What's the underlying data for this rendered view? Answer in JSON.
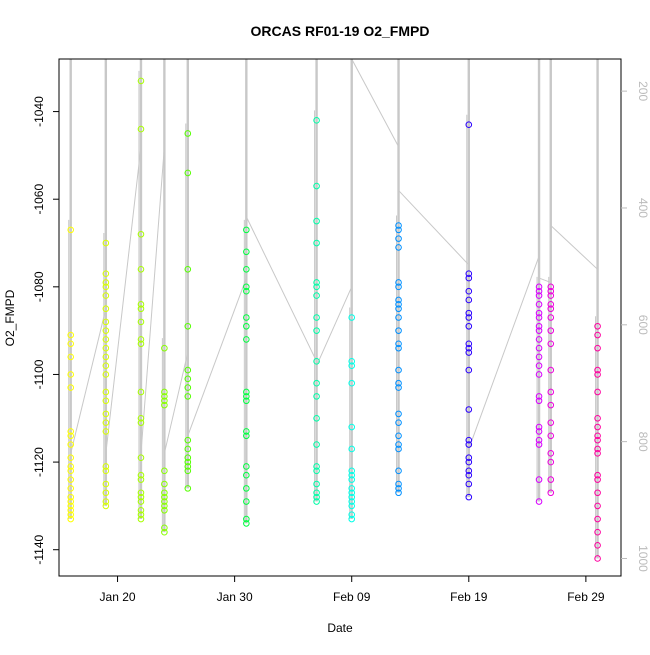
{
  "chart_data": {
    "type": "scatter",
    "title": "ORCAS RF01-19 O2_FMPD",
    "xlabel": "Date",
    "ylabel": "O2_FMPD",
    "x_axis": {
      "type": "date",
      "min": "2016-01-15",
      "max": "2016-03-03",
      "ticks": [
        {
          "value": "2016-01-20",
          "label": "Jan 20"
        },
        {
          "value": "2016-01-30",
          "label": "Jan 30"
        },
        {
          "value": "2016-02-09",
          "label": "Feb 09"
        },
        {
          "value": "2016-02-19",
          "label": "Feb 19"
        },
        {
          "value": "2016-02-29",
          "label": "Feb 29"
        }
      ]
    },
    "y_axis": {
      "min": -1146,
      "max": -1028,
      "ticks": [
        -1140,
        -1120,
        -1100,
        -1080,
        -1060,
        -1040
      ]
    },
    "y2_axis": {
      "color": "#bbbbbb",
      "min": 1030,
      "max": 145,
      "ticks": [
        200,
        400,
        600,
        800,
        1000
      ]
    },
    "grid": false,
    "legend": "none",
    "line_color": "#c8c8c8",
    "flights": [
      {
        "date": "2016-01-16",
        "color": "#ffff00",
        "values": [
          -1067,
          -1091,
          -1093,
          -1096,
          -1100,
          -1103,
          -1113,
          -1114,
          -1116,
          -1119,
          -1121,
          -1122,
          -1124,
          -1126,
          -1128,
          -1129,
          -1130,
          -1131,
          -1132,
          -1133
        ]
      },
      {
        "date": "2016-01-19",
        "color": "#d8ff00",
        "values": [
          -1070,
          -1077,
          -1079,
          -1080,
          -1082,
          -1085,
          -1088,
          -1090,
          -1092,
          -1094,
          -1096,
          -1098,
          -1100,
          -1104,
          -1106,
          -1109,
          -1111,
          -1113,
          -1121,
          -1122,
          -1125,
          -1127,
          -1129,
          -1130
        ]
      },
      {
        "date": "2016-01-22",
        "color": "#a8ff00",
        "values": [
          -1033,
          -1044,
          -1068,
          -1076,
          -1084,
          -1085,
          -1088,
          -1092,
          -1093,
          -1104,
          -1110,
          -1111,
          -1119,
          -1123,
          -1124,
          -1127,
          -1128,
          -1129,
          -1131,
          -1132,
          -1133
        ]
      },
      {
        "date": "2016-01-24",
        "color": "#88ff00",
        "values": [
          -1094,
          -1104,
          -1105,
          -1106,
          -1107,
          -1122,
          -1125,
          -1127,
          -1128,
          -1129,
          -1130,
          -1131,
          -1135,
          -1136
        ]
      },
      {
        "date": "2016-01-26",
        "color": "#55ff00",
        "values": [
          -1045,
          -1054,
          -1076,
          -1089,
          -1099,
          -1101,
          -1103,
          -1105,
          -1115,
          -1117,
          -1119,
          -1120,
          -1121,
          -1122,
          -1126
        ]
      },
      {
        "date": "2016-01-31",
        "color": "#00ff40",
        "values": [
          -1067,
          -1072,
          -1076,
          -1080,
          -1081,
          -1087,
          -1089,
          -1092,
          -1104,
          -1105,
          -1106,
          -1113,
          -1114,
          -1121,
          -1123,
          -1126,
          -1129,
          -1133,
          -1134
        ]
      },
      {
        "date": "2016-02-06",
        "color": "#00ffa8",
        "values": [
          -1042,
          -1057,
          -1065,
          -1070,
          -1079,
          -1080,
          -1082,
          -1087,
          -1090,
          -1097,
          -1102,
          -1105,
          -1110,
          -1116,
          -1121,
          -1122,
          -1125,
          -1127,
          -1128,
          -1129
        ]
      },
      {
        "date": "2016-02-09",
        "color": "#00ffe8",
        "values": [
          -1087,
          -1097,
          -1098,
          -1102,
          -1112,
          -1117,
          -1122,
          -1123,
          -1124,
          -1126,
          -1127,
          -1128,
          -1129,
          -1130,
          -1132,
          -1133
        ]
      },
      {
        "date": "2016-02-13",
        "color": "#0090ff",
        "values": [
          -1066,
          -1067,
          -1069,
          -1071,
          -1079,
          -1080,
          -1083,
          -1084,
          -1085,
          -1087,
          -1090,
          -1093,
          -1094,
          -1099,
          -1102,
          -1103,
          -1109,
          -1111,
          -1114,
          -1116,
          -1117,
          -1122,
          -1125,
          -1126,
          -1127
        ]
      },
      {
        "date": "2016-02-19",
        "color": "#2a00ff",
        "values": [
          -1043,
          -1077,
          -1078,
          -1081,
          -1083,
          -1086,
          -1087,
          -1089,
          -1093,
          -1094,
          -1095,
          -1099,
          -1108,
          -1115,
          -1116,
          -1119,
          -1120,
          -1122,
          -1123,
          -1125,
          -1128
        ]
      },
      {
        "date": "2016-02-25",
        "color": "#d800ff",
        "values": [
          -1080,
          -1081,
          -1082,
          -1084,
          -1086,
          -1087,
          -1089,
          -1090,
          -1092,
          -1094,
          -1096,
          -1098,
          -1100,
          -1105,
          -1106,
          -1112,
          -1113,
          -1115,
          -1116,
          -1124,
          -1129
        ]
      },
      {
        "date": "2016-02-26",
        "color": "#ee00dd",
        "values": [
          -1080,
          -1081,
          -1082,
          -1084,
          -1085,
          -1087,
          -1090,
          -1093,
          -1099,
          -1104,
          -1107,
          -1111,
          -1114,
          -1118,
          -1120,
          -1124,
          -1127
        ]
      },
      {
        "date": "2016-03-01",
        "color": "#ff00a0",
        "values": [
          -1089,
          -1091,
          -1094,
          -1099,
          -1100,
          -1104,
          -1110,
          -1112,
          -1114,
          -1115,
          -1117,
          -1118,
          -1123,
          -1124,
          -1127,
          -1130,
          -1133,
          -1136,
          -1139,
          -1142
        ]
      }
    ],
    "connectors": [
      [
        "2016-01-16",
        -1118,
        "2016-01-19",
        -1085
      ],
      [
        "2016-01-19",
        -1118,
        "2016-01-22",
        -1048
      ],
      [
        "2016-01-22",
        -1118,
        "2016-01-24",
        -1048
      ],
      [
        "2016-01-24",
        -1118,
        "2016-01-26",
        -1095
      ],
      [
        "2016-01-26",
        -1114,
        "2016-01-31",
        -1078
      ],
      [
        "2016-01-31",
        -1064,
        "2016-02-06",
        -1097
      ],
      [
        "2016-02-06",
        -1098,
        "2016-02-09",
        -1080
      ],
      [
        "2016-02-09",
        -1028,
        "2016-02-13",
        -1048
      ],
      [
        "2016-02-13",
        -1058,
        "2016-02-19",
        -1075
      ],
      [
        "2016-02-19",
        -1117,
        "2016-02-25",
        -1073
      ],
      [
        "2016-02-25",
        -1078,
        "2016-02-26",
        -1079
      ],
      [
        "2016-02-26",
        -1066,
        "2016-03-01",
        -1076
      ]
    ]
  }
}
